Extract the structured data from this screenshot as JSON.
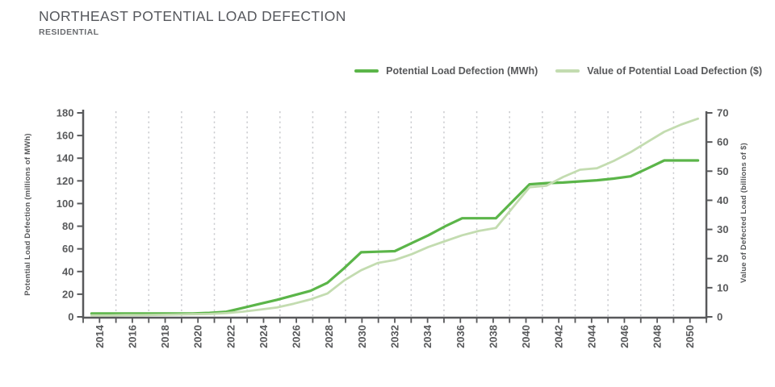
{
  "header": {
    "title": "NORTHEAST POTENTIAL LOAD DEFECTION",
    "subtitle": "RESIDENTIAL"
  },
  "legend": {
    "items": [
      {
        "label": "Potential Load Defection (MWh)"
      },
      {
        "label": "Value of Potential Load Defection ($)"
      }
    ]
  },
  "chart_data": {
    "type": "line",
    "title": "NORTHEAST POTENTIAL LOAD DEFECTION",
    "subtitle": "RESIDENTIAL",
    "grid": {
      "vertical_dashed": true,
      "horizontal": false
    },
    "legend_position": "top-right",
    "x": [
      2014,
      2015,
      2016,
      2017,
      2018,
      2019,
      2020,
      2021,
      2022,
      2023,
      2024,
      2025,
      2026,
      2027,
      2028,
      2029,
      2030,
      2031,
      2032,
      2033,
      2034,
      2035,
      2036,
      2037,
      2038,
      2039,
      2040,
      2041,
      2042,
      2043,
      2044,
      2045,
      2046,
      2047,
      2048,
      2049,
      2050
    ],
    "x_tick_labels": [
      "2014",
      "2016",
      "2018",
      "2020",
      "2022",
      "2024",
      "2026",
      "2028",
      "2030",
      "2032",
      "2034",
      "2036",
      "2038",
      "2040",
      "2042",
      "2044",
      "2046",
      "2048",
      "2050"
    ],
    "x_label_every": 2,
    "left_axis": {
      "label": "Potential Load Defection (millions of MWh)",
      "min": 0,
      "max": 180,
      "step": 20
    },
    "right_axis": {
      "label": "Value of Defected Load (billions of $)",
      "min": 0,
      "max": 70,
      "step": 10
    },
    "series": [
      {
        "name": "Potential Load Defection (MWh)",
        "axis": "left",
        "color": "#5bb549",
        "values": [
          3,
          3,
          3,
          3,
          3,
          3,
          3,
          3.5,
          4.5,
          8,
          11.5,
          15,
          19,
          23,
          30,
          43,
          57,
          57.5,
          58,
          65,
          72,
          80,
          87,
          87,
          87,
          102,
          117,
          118,
          118.5,
          119.5,
          120.5,
          122,
          124,
          131,
          138,
          138,
          138
        ]
      },
      {
        "name": "Value of Potential Load Defection ($)",
        "axis": "right",
        "color": "#c3dcb0",
        "values": [
          0.5,
          0.5,
          0.6,
          0.6,
          0.7,
          0.8,
          0.9,
          1.0,
          1.3,
          1.8,
          2.5,
          3.2,
          4.5,
          6,
          8,
          12.5,
          16,
          18.5,
          19.5,
          21.5,
          24,
          26,
          28,
          29.5,
          30.5,
          37.5,
          44.5,
          45,
          48,
          50.5,
          51,
          53.5,
          56.5,
          60,
          63.5,
          66,
          68
        ]
      }
    ],
    "colors": {
      "axis": "#58595b",
      "gridline": "#c9cace",
      "text": "#58595b"
    }
  }
}
